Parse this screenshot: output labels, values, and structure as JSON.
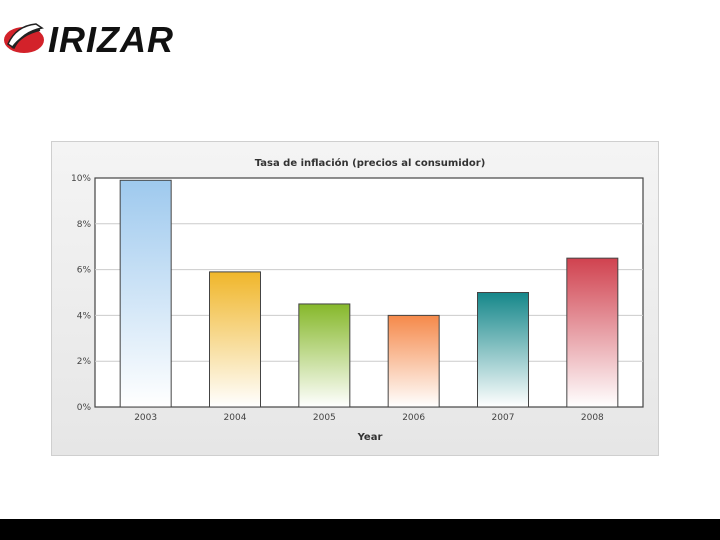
{
  "brand": {
    "name": "IRIZAR"
  },
  "chart_data": {
    "type": "bar",
    "title": "Tasa de inflación (precios al consumidor)",
    "xlabel": "Year",
    "ylabel": "",
    "ylim": [
      0,
      10
    ],
    "yticks": [
      "0%",
      "2%",
      "4%",
      "6%",
      "8%",
      "10%"
    ],
    "categories": [
      "2003",
      "2004",
      "2005",
      "2006",
      "2007",
      "2008"
    ],
    "values": [
      9.9,
      5.9,
      4.5,
      4.0,
      5.0,
      6.5
    ],
    "colors": [
      "#9ec9ee",
      "#f0b62a",
      "#86b82a",
      "#f5894a",
      "#15878a",
      "#d0424f"
    ],
    "grid": true,
    "legend": "none"
  }
}
